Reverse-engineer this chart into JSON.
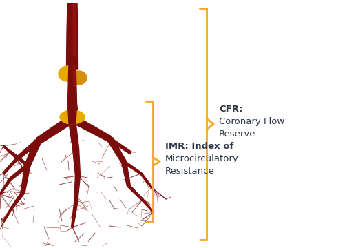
{
  "background_color": "#ffffff",
  "bracket_color": "#f5a623",
  "text_color": "#2d3748",
  "cfr_label": "CFR:",
  "cfr_desc_line1": "Coronary Flow",
  "cfr_desc_line2": "Reserve",
  "imr_label": "IMR: Index of",
  "imr_desc_line1": "Microcirculatory",
  "imr_desc_line2": "Resistance",
  "bracket_lw": 2.0,
  "artery_dark": "#7b0c0c",
  "artery_mid": "#9b1515",
  "plaque_color": "#d4900a",
  "plaque_color2": "#e8a800"
}
